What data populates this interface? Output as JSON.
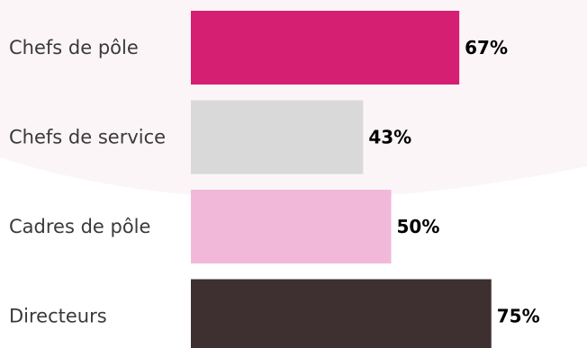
{
  "chart_data": {
    "type": "bar",
    "orientation": "horizontal",
    "categories": [
      "Chefs de pôle",
      "Chefs de service",
      "Cadres de pôle",
      "Directeurs"
    ],
    "values": [
      67,
      43,
      50,
      75
    ],
    "value_labels": [
      "67%",
      "43%",
      "50%",
      "75%"
    ],
    "colors": [
      "#d41f72",
      "#d9d9d9",
      "#f2b8da",
      "#3e3030"
    ],
    "unit": "%",
    "title": "",
    "xlabel": "",
    "ylabel": "",
    "xlim": [
      0,
      100
    ],
    "grid": false,
    "legend": "none"
  },
  "background": {
    "arc_color": "#fbf5f7"
  }
}
